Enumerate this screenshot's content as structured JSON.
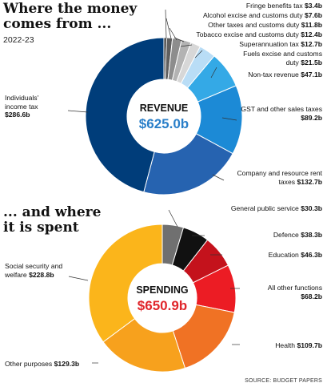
{
  "header": {
    "title_line1": "Where the money",
    "title_line2": "comes from ...",
    "year": "2022-23"
  },
  "section2": {
    "title_line1": "... and where",
    "title_line2": "it is spent"
  },
  "source": "SOURCE: BUDGET PAPERS",
  "chart_data": [
    {
      "type": "pie",
      "center_title": "REVENUE",
      "center_value": "$625.0b",
      "center_color": "#2a7fc9",
      "categories": [
        "Fringe benefits tax",
        "Alcohol excise and customs duty",
        "Other taxes and customs duty",
        "Tobacco excise and customs duty",
        "Superannuation tax",
        "Fuels excise and customs duty",
        "Non-tax revenue",
        "GST and other sales taxes",
        "Company and resource rent taxes",
        "Individuals' income tax"
      ],
      "values": [
        3.4,
        7.6,
        11.8,
        12.4,
        12.7,
        21.5,
        47.1,
        89.2,
        132.7,
        286.6
      ],
      "value_labels": [
        "$3.4b",
        "$7.6b",
        "$11.8b",
        "$12.4b",
        "$12.7b",
        "$21.5b",
        "$47.1b",
        "$89.2b",
        "$132.7b",
        "$286.6b"
      ],
      "colors": [
        "#2e2e2e",
        "#5f5f5f",
        "#8d8d8d",
        "#b3b3b3",
        "#d7d7d7",
        "#b9ddf6",
        "#34a9e6",
        "#1c8ad6",
        "#2663b0",
        "#003d7a"
      ]
    },
    {
      "type": "pie",
      "center_title": "SPENDING",
      "center_value": "$650.9b",
      "center_color": "#e0262b",
      "categories": [
        "General public service",
        "Defence",
        "Education",
        "All other functions",
        "Health",
        "Other purposes",
        "Social security and welfare"
      ],
      "values": [
        30.3,
        38.3,
        46.3,
        68.2,
        109.7,
        129.3,
        228.8
      ],
      "value_labels": [
        "$30.3b",
        "$38.3b",
        "$46.3b",
        "$68.2b",
        "$109.7b",
        "$129.3b",
        "$228.8b"
      ],
      "colors": [
        "#707070",
        "#111111",
        "#c4121c",
        "#ec1c24",
        "#f07224",
        "#f7a11d",
        "#fbb51b"
      ]
    }
  ]
}
